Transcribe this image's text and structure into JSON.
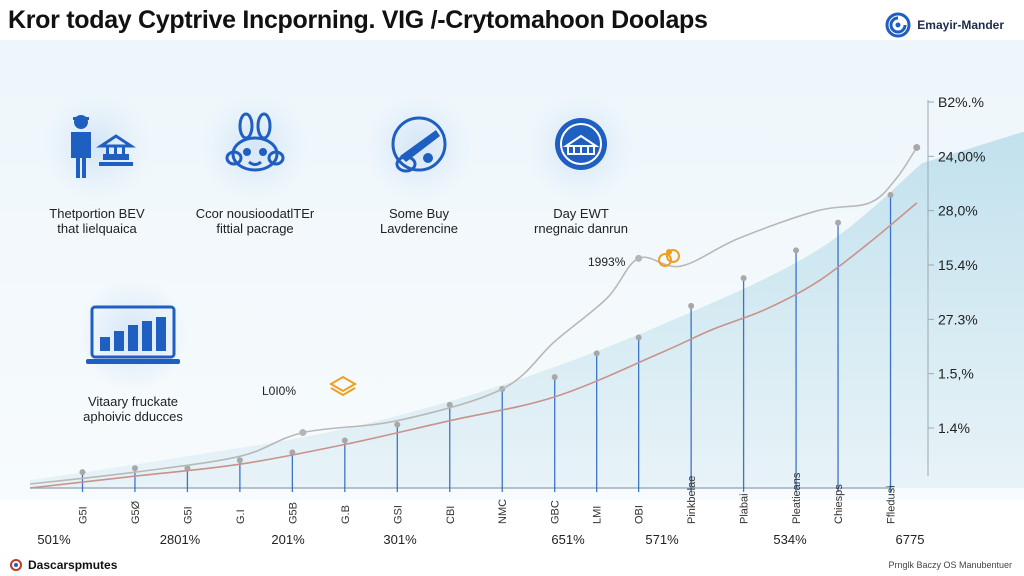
{
  "title": "Kror today Cyptrive Incporning. VIG /-Crytomahoon Doolaps",
  "brand": {
    "name": "Emayir-Mander"
  },
  "features": [
    {
      "icon": "worker-with-building-icon",
      "line1": "Thetportion BEV",
      "line2": "that lielquaica"
    },
    {
      "icon": "mascot-character-icon",
      "line1": "Ccor nousioodatlTEr",
      "line2": "fittial pacrage"
    },
    {
      "icon": "tools-roll-icon",
      "line1": "Some Buy",
      "line2": "Lavderencine"
    },
    {
      "icon": "stadium-badge-icon",
      "line1": "Day EWT",
      "line2": "rnegnaic danrun"
    },
    {
      "icon": "laptop-bar-chart-icon",
      "line1": "Vitaary fruckate",
      "line2": "aphoivic dducces"
    }
  ],
  "point_labels": [
    {
      "text": "1993%",
      "icon": "coin-stack-icon"
    },
    {
      "text": "L0I0%",
      "icon": "wallet-icon"
    }
  ],
  "footer": {
    "left": "Dascarspmutes",
    "right": "Prnglk Baczy OS Manubentuer"
  },
  "colors": {
    "accent": "#1f5fc1",
    "line_gray": "#b8b8b8",
    "line_red": "#c9928a",
    "area_fill": "#cfe6ef",
    "icon_orange": "#f0a020"
  },
  "chart_data": {
    "type": "line",
    "title": "Kror today Cyptrive Incporning. VIG /-Crytomahoon Doolaps",
    "xlabel": "",
    "ylabel": "",
    "x_min": 0,
    "x_max": 17,
    "ylim": [
      0,
      100
    ],
    "right_axis_labels": [
      "B2%.%",
      "24,00%",
      "28,0%",
      "15.4%",
      "27.3%",
      "1.5,%",
      "1.4%"
    ],
    "bottom_labels": [
      "501%",
      "2801%",
      "201%",
      "301%",
      "651%",
      "571%",
      "534%",
      "6775"
    ],
    "series": [
      {
        "name": "upper-gray",
        "x": [
          0,
          2,
          4,
          5.2,
          7,
          9,
          10,
          11,
          11.6,
          12.4,
          13.5,
          15,
          16,
          16.5,
          16.9
        ],
        "values": [
          1,
          4,
          8,
          14,
          17,
          25,
          37,
          48,
          58,
          56,
          63,
          70,
          72,
          78,
          86
        ]
      },
      {
        "name": "lower-red",
        "x": [
          0,
          2,
          4,
          6,
          8,
          10,
          12,
          13,
          14,
          15,
          16,
          16.9
        ],
        "values": [
          0,
          3,
          6,
          11,
          17,
          23,
          34,
          40,
          45,
          52,
          62,
          72
        ]
      }
    ],
    "area": {
      "x": [
        0,
        3,
        6,
        9,
        12,
        15,
        17
      ],
      "values": [
        2,
        8,
        15,
        26,
        41,
        60,
        82
      ]
    },
    "markers": [
      {
        "x": 1,
        "y": 4,
        "label": "G5I"
      },
      {
        "x": 2,
        "y": 5,
        "label": "G5Ø"
      },
      {
        "x": 3,
        "y": 5,
        "label": "G5I"
      },
      {
        "x": 4,
        "y": 7,
        "label": "G.I"
      },
      {
        "x": 5,
        "y": 9,
        "label": "G5B"
      },
      {
        "x": 6,
        "y": 12,
        "label": "G.B"
      },
      {
        "x": 7,
        "y": 16,
        "label": "GSI"
      },
      {
        "x": 8,
        "y": 21,
        "label": "CBI"
      },
      {
        "x": 9,
        "y": 25,
        "label": "NMC"
      },
      {
        "x": 10,
        "y": 28,
        "label": "GBC"
      },
      {
        "x": 10.8,
        "y": 34,
        "label": "LMI"
      },
      {
        "x": 11.6,
        "y": 38,
        "label": "OBI"
      },
      {
        "x": 12.6,
        "y": 46,
        "label": "Pinkbelae"
      },
      {
        "x": 13.6,
        "y": 53,
        "label": "Plabai"
      },
      {
        "x": 14.6,
        "y": 60,
        "label": "Pleatieans"
      },
      {
        "x": 15.4,
        "y": 67,
        "label": "Chiesps"
      },
      {
        "x": 16.4,
        "y": 74,
        "label": "Ffledusi"
      }
    ]
  }
}
